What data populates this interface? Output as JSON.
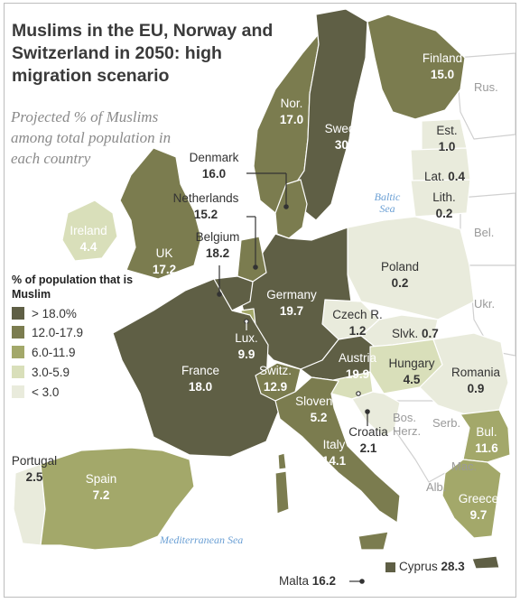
{
  "title": "Muslims in the EU, Norway and Switzerland in 2050: high migration scenario",
  "subtitle": "Projected % of Muslims among total population in each country",
  "legend": {
    "title": "% of population that is Muslim",
    "items": [
      {
        "label": "> 18.0%",
        "color": "#5f5f45"
      },
      {
        "label": "12.0-17.9",
        "color": "#7b7c4f"
      },
      {
        "label": "6.0-11.9",
        "color": "#a3a86a"
      },
      {
        "label": "3.0-5.9",
        "color": "#d9dfba"
      },
      {
        "label": "< 3.0",
        "color": "#e9ebdc"
      }
    ]
  },
  "countries": {
    "finland": {
      "name": "Finland",
      "value": "15.0"
    },
    "norway": {
      "name": "Nor.",
      "value": "17.0"
    },
    "sweden": {
      "name": "Sweden",
      "value": "30.6"
    },
    "estonia": {
      "name": "Est.",
      "value": "1.0"
    },
    "latvia": {
      "name": "Lat.",
      "value": "0.4"
    },
    "lithuania": {
      "name": "Lith.",
      "value": "0.2"
    },
    "denmark": {
      "name": "Denmark",
      "value": "16.0"
    },
    "netherlands": {
      "name": "Netherlands",
      "value": "15.2"
    },
    "belgium": {
      "name": "Belgium",
      "value": "18.2"
    },
    "ireland": {
      "name": "Ireland",
      "value": "4.4"
    },
    "uk": {
      "name": "UK",
      "value": "17.2"
    },
    "poland": {
      "name": "Poland",
      "value": "0.2"
    },
    "germany": {
      "name": "Germany",
      "value": "19.7"
    },
    "czech": {
      "name": "Czech R.",
      "value": "1.2"
    },
    "slovakia": {
      "name": "Slvk.",
      "value": "0.7"
    },
    "luxembourg": {
      "name": "Lux.",
      "value": "9.9"
    },
    "austria": {
      "name": "Austria",
      "value": "19.9"
    },
    "hungary": {
      "name": "Hungary",
      "value": "4.5"
    },
    "romania": {
      "name": "Romania",
      "value": "0.9"
    },
    "france": {
      "name": "France",
      "value": "18.0"
    },
    "switzerland": {
      "name": "Switz.",
      "value": "12.9"
    },
    "slovenia": {
      "name": "Slovenia",
      "value": "5.2"
    },
    "croatia": {
      "name": "Croatia",
      "value": "2.1"
    },
    "bulgaria": {
      "name": "Bul.",
      "value": "11.6"
    },
    "italy": {
      "name": "Italy",
      "value": "14.1"
    },
    "portugal": {
      "name": "Portugal",
      "value": "2.5"
    },
    "spain": {
      "name": "Spain",
      "value": "7.2"
    },
    "greece": {
      "name": "Greece",
      "value": "9.7"
    },
    "cyprus": {
      "name": "Cyprus",
      "value": "28.3"
    },
    "malta": {
      "name": "Malta",
      "value": "16.2"
    }
  },
  "non_covered": {
    "russia": "Rus.",
    "belarus": "Bel.",
    "ukraine": "Ukr.",
    "bosnia": "Bos. Herz.",
    "serbia": "Serb.",
    "macedonia": "Mac.",
    "albania": "Alb."
  },
  "seas": {
    "baltic": "Baltic Sea",
    "mediterranean": "Mediterranean Sea"
  },
  "colors": {
    "bin1_over18": "#5f5f45",
    "bin2_12to18": "#7b7c4f",
    "bin3_6to12": "#a3a86a",
    "bin4_3to6": "#d9dfba",
    "bin5_under3": "#e9ebdc",
    "not_covered": "#ffffff",
    "border": "#ffffff",
    "sea_label": "#6a9fd4"
  }
}
